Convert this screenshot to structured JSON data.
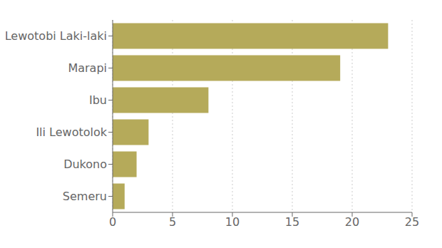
{
  "chart_data": {
    "type": "bar",
    "orientation": "horizontal",
    "categories": [
      "Semeru",
      "Dukono",
      "Ili Lewotolok",
      "Ibu",
      "Marapi",
      "Lewotobi Laki-laki"
    ],
    "values": [
      1,
      2,
      3,
      8,
      19,
      23
    ],
    "color": "#b5aa5a",
    "xlim": [
      0,
      25
    ],
    "xticks": [
      0,
      5,
      10,
      15,
      20,
      25
    ],
    "grid": true
  }
}
